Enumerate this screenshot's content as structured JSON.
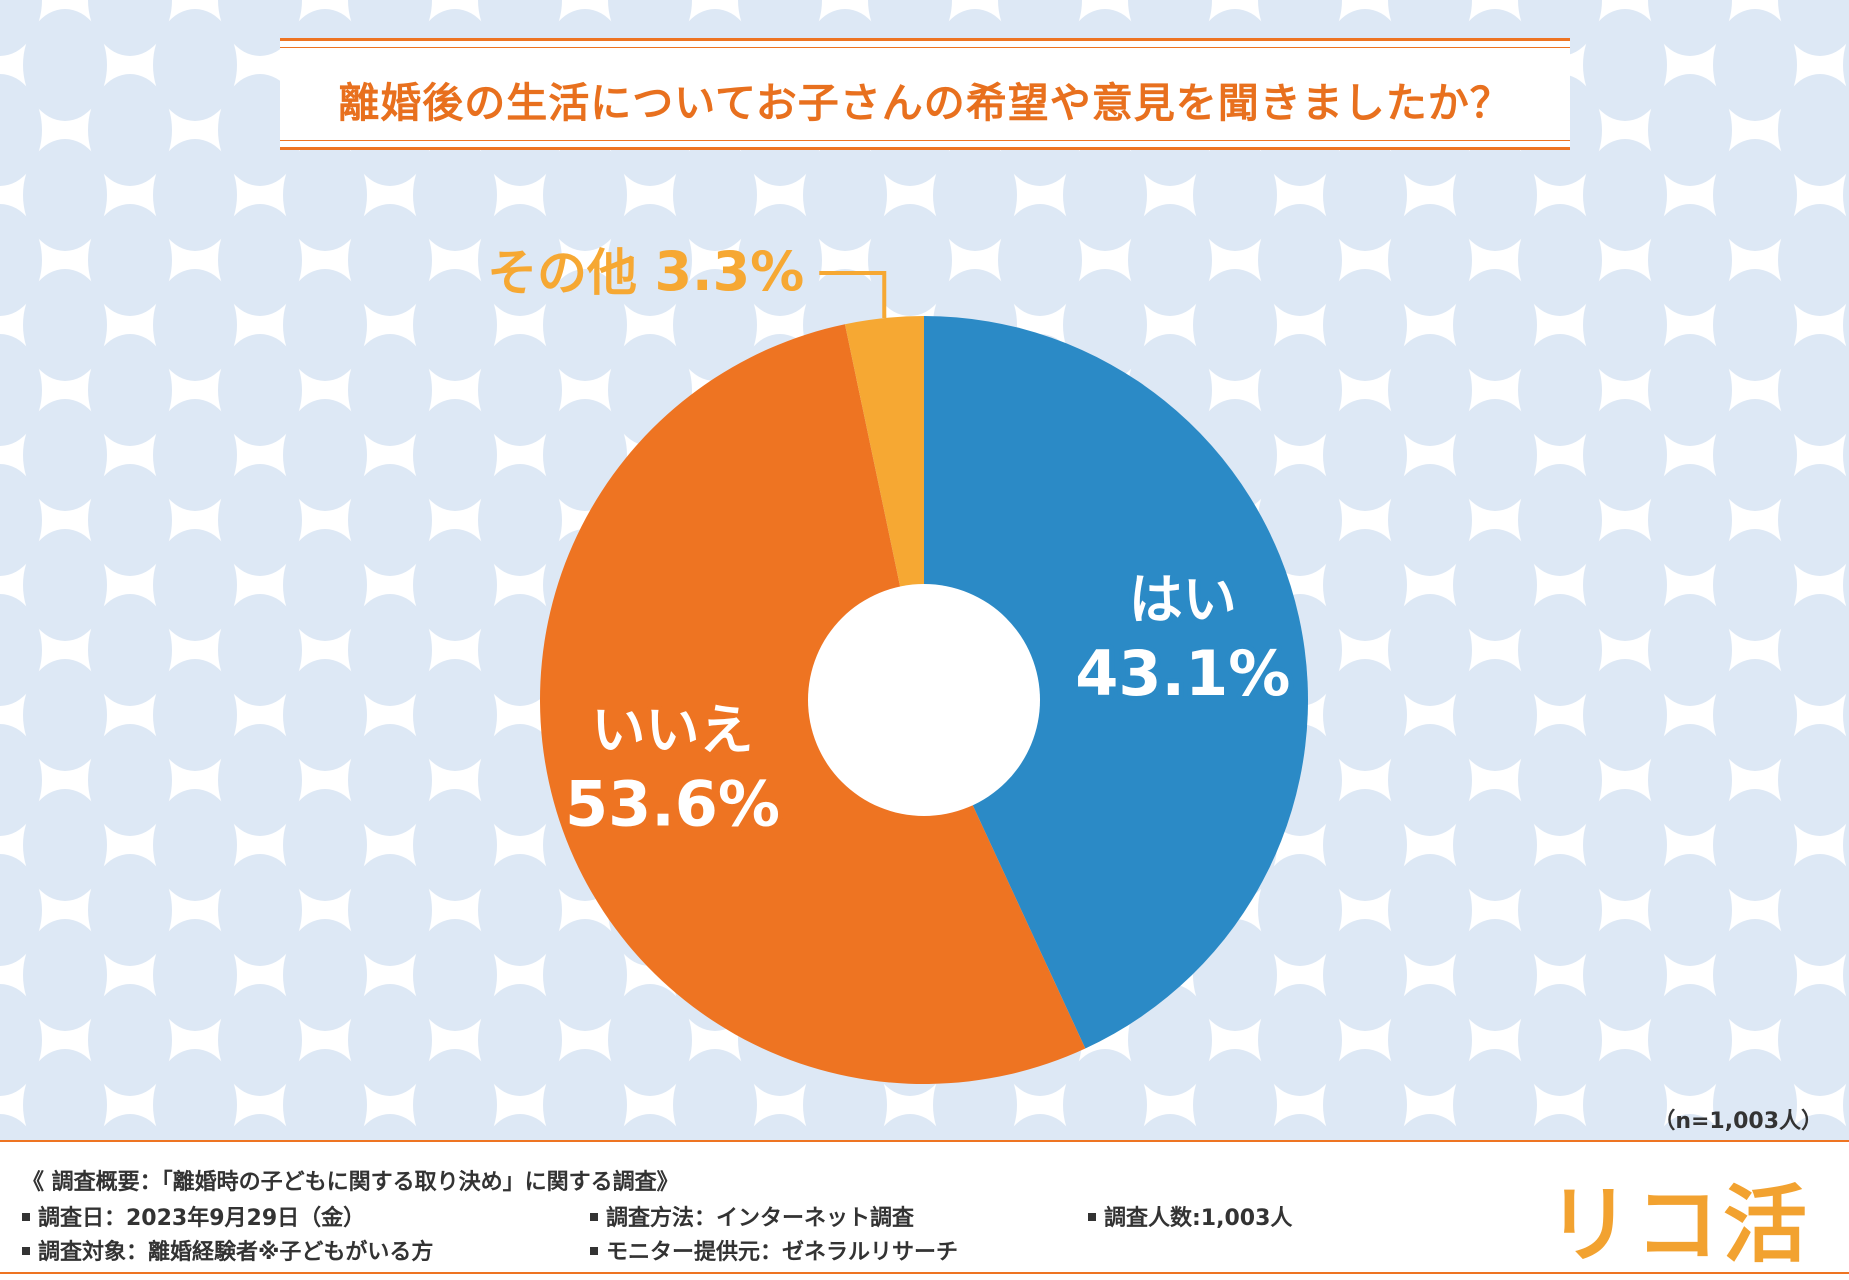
{
  "title": "離婚後の生活についてお子さんの希望や意見を聞きましたか？",
  "sample_size": "（n=1,003人）",
  "colors": {
    "yes": "#2b8ac6",
    "no": "#ee7422",
    "other": "#f6a833",
    "accent": "#ee7422",
    "pattern": "#dfe9f6"
  },
  "chart_data": {
    "type": "pie",
    "title": "離婚後の生活についてお子さんの希望や意見を聞きましたか？",
    "categories": [
      "はい",
      "いいえ",
      "その他"
    ],
    "values": [
      43.1,
      53.6,
      3.3
    ],
    "unit": "%",
    "value_labels": [
      "43.1%",
      "53.6%",
      "3.3%"
    ],
    "style": "donut"
  },
  "footer": {
    "summary": "《 調査概要：「離婚時の子どもに関する取り決め」に関する調査》",
    "date": "調査日：2023年9月29日（金）",
    "method": "調査方法：インターネット調査",
    "count": "調査人数:1,003人",
    "target": "調査対象：離婚経験者※子どもがいる方",
    "provider": "モニター提供元：ゼネラルリサーチ"
  },
  "logo_text": "リコ活"
}
